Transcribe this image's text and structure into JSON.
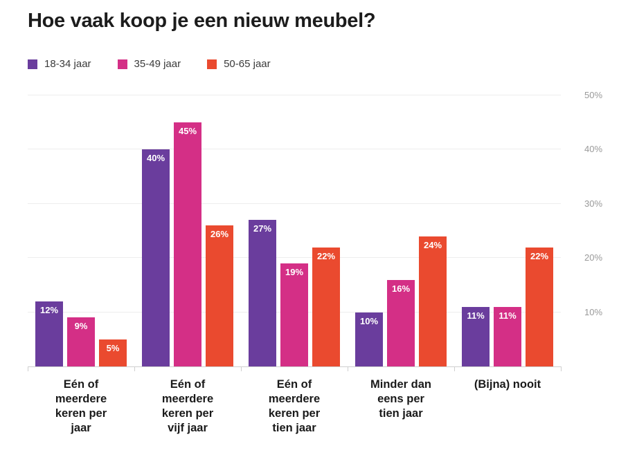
{
  "chart_data": {
    "type": "bar",
    "title": "Hoe vaak koop je een nieuw meubel?",
    "categories": [
      "Eén of meerdere keren per jaar",
      "Eén of meerdere keren per vijf jaar",
      "Eén of meerdere keren per tien jaar",
      "Minder dan eens per tien jaar",
      "(Bijna) nooit"
    ],
    "category_lines": [
      [
        "Eén of",
        "meerdere",
        "keren per",
        "jaar"
      ],
      [
        "Eén of",
        "meerdere",
        "keren per",
        "vijf jaar"
      ],
      [
        "Eén of",
        "meerdere",
        "keren per",
        "tien jaar"
      ],
      [
        "Minder dan",
        "eens per",
        "tien jaar"
      ],
      [
        "(Bijna) nooit"
      ]
    ],
    "series": [
      {
        "name": "18-34 jaar",
        "color": "#6a3d9d",
        "values": [
          12,
          40,
          27,
          10,
          11
        ]
      },
      {
        "name": "35-49 jaar",
        "color": "#d42f86",
        "values": [
          9,
          45,
          19,
          16,
          11
        ]
      },
      {
        "name": "50-65 jaar",
        "color": "#ea4a2f",
        "values": [
          5,
          26,
          22,
          24,
          22
        ]
      }
    ],
    "value_suffix": "%",
    "ylim": [
      0,
      50
    ],
    "yticks": [
      10,
      20,
      30,
      40,
      50
    ],
    "ytick_labels": [
      "10%",
      "20%",
      "30%",
      "40%",
      "50%"
    ],
    "ytick_side": "right",
    "grid": "horizontal",
    "legend_position": "top-left",
    "bar_value_labels": "inside-top-white"
  }
}
